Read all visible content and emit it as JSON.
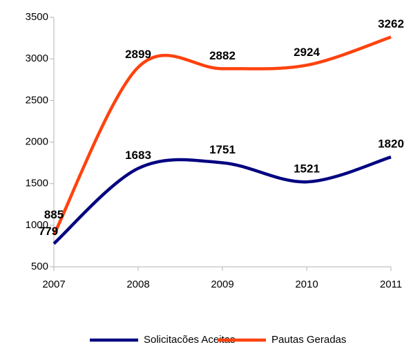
{
  "chart_data": {
    "type": "line",
    "categories": [
      "2007",
      "2008",
      "2009",
      "2010",
      "2011"
    ],
    "series": [
      {
        "name": "Solicitacões Aceitas",
        "color": "#000080",
        "values": [
          779,
          1683,
          1751,
          1521,
          1820
        ]
      },
      {
        "name": "Pautas Geradas",
        "color": "#ff420e",
        "values": [
          885,
          2899,
          2882,
          2924,
          3262
        ]
      }
    ],
    "ylim": [
      500,
      3500
    ],
    "yticks": [
      500,
      1000,
      1500,
      2000,
      2500,
      3000,
      3500
    ],
    "smooth": true,
    "legend": "bottom"
  }
}
